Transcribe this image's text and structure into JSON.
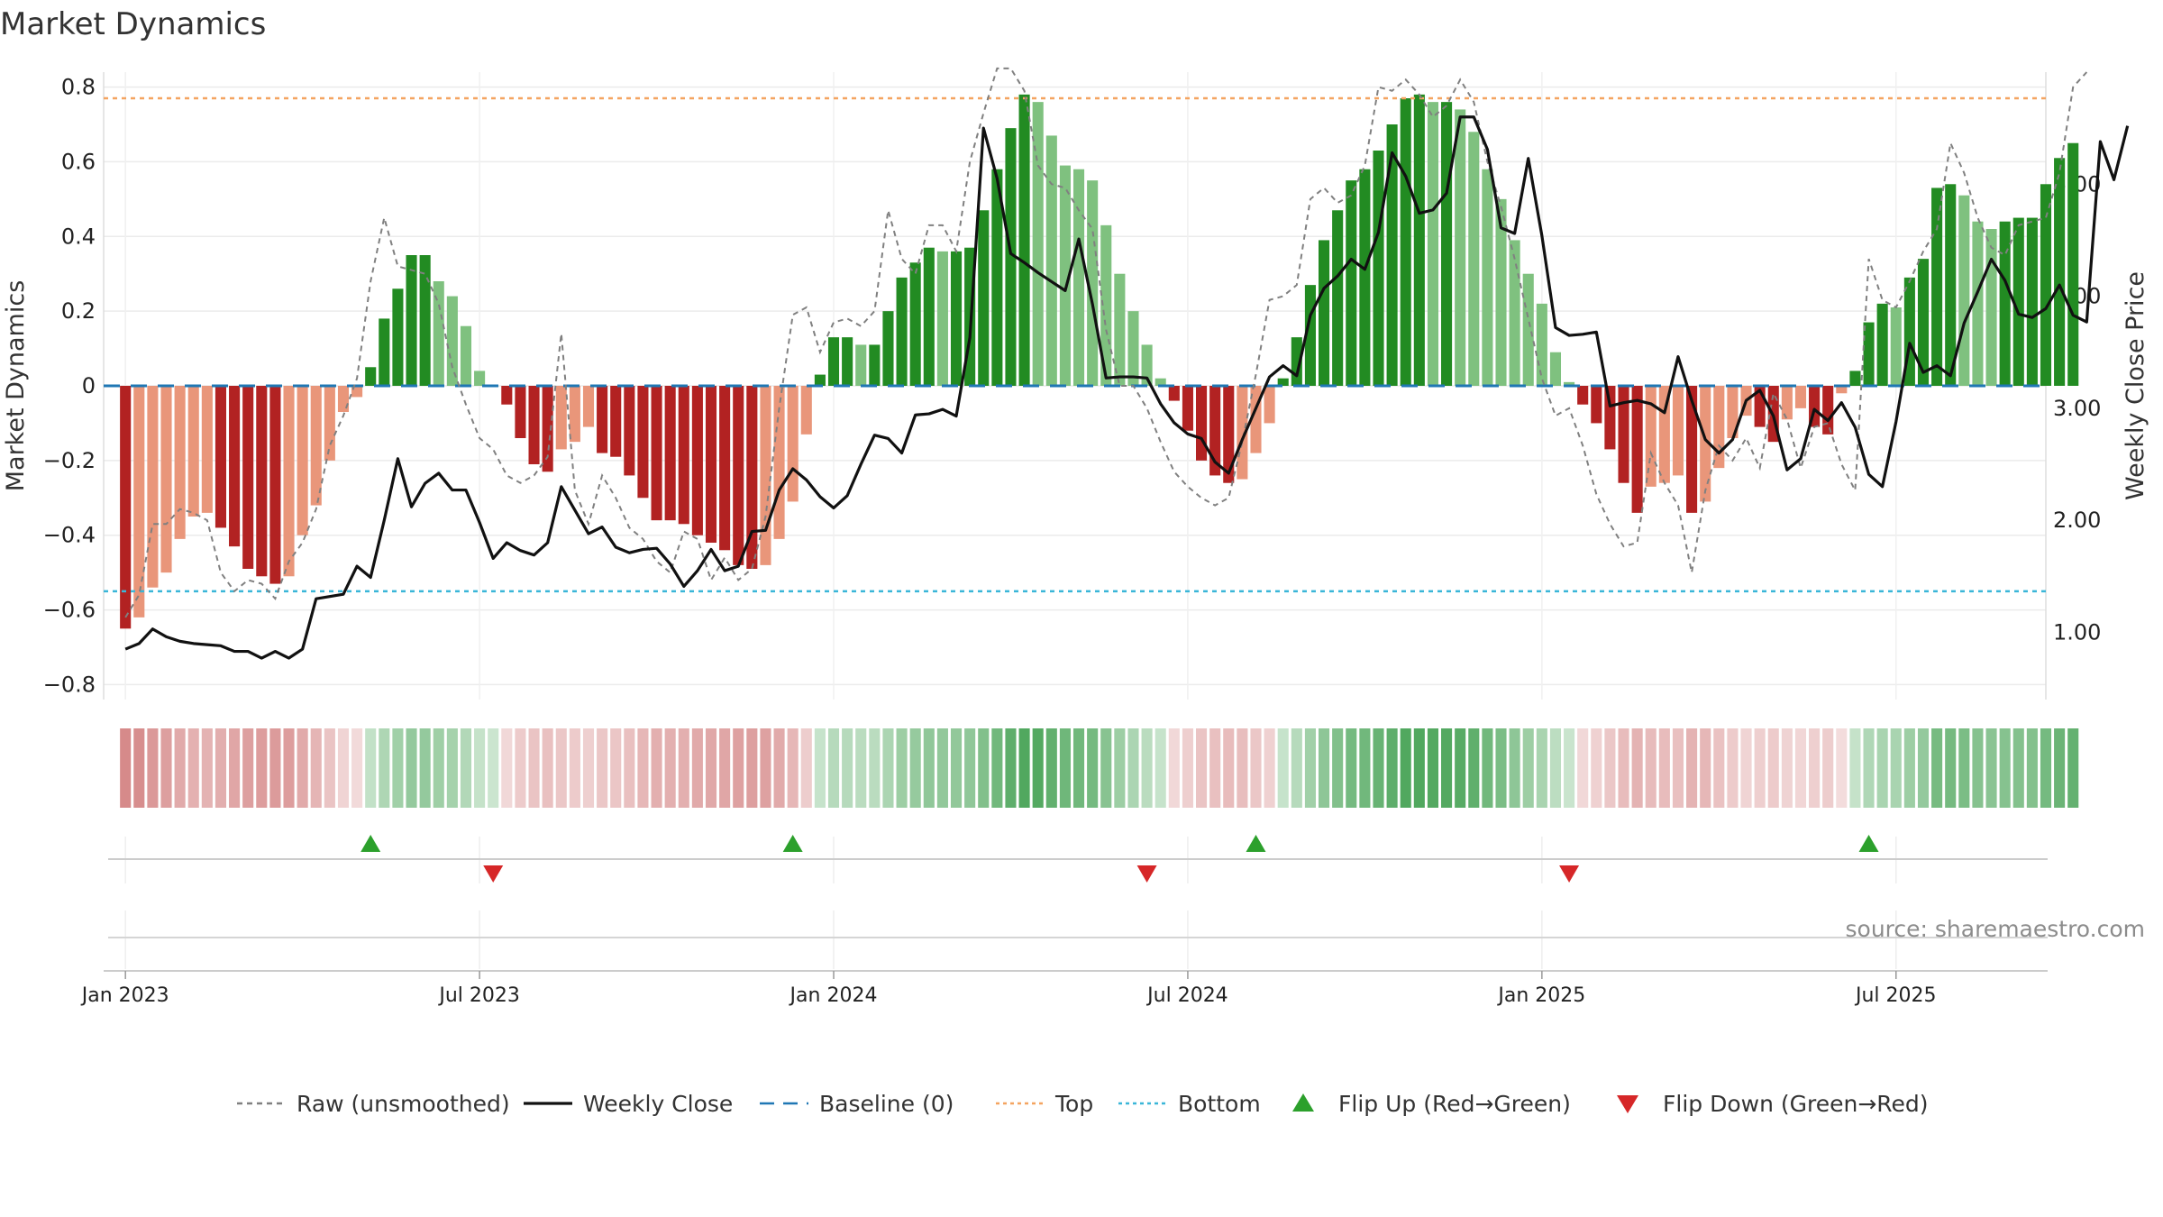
{
  "chart_data": {
    "type": "bar",
    "title": "Market Dynamics",
    "ylabel_left": "Market Dynamics",
    "ylabel_right": "Weekly Close Price",
    "source": "source: sharemaestro.com",
    "ylim_left": [
      -0.84,
      0.84
    ],
    "ylim_right": [
      0.4,
      6.0
    ],
    "left_ticks": [
      {
        "v": 0.8,
        "label": "0.8"
      },
      {
        "v": 0.6,
        "label": "0.6"
      },
      {
        "v": 0.4,
        "label": "0.4"
      },
      {
        "v": 0.2,
        "label": "0.2"
      },
      {
        "v": 0.0,
        "label": "0"
      },
      {
        "v": -0.2,
        "label": "−0.2"
      },
      {
        "v": -0.4,
        "label": "−0.4"
      },
      {
        "v": -0.6,
        "label": "−0.6"
      },
      {
        "v": -0.8,
        "label": "−0.8"
      }
    ],
    "right_ticks": [
      {
        "v": 5.0,
        "label": "5.00"
      },
      {
        "v": 4.0,
        "label": "4.00"
      },
      {
        "v": 3.0,
        "label": "3.00"
      },
      {
        "v": 2.0,
        "label": "2.00"
      },
      {
        "v": 1.0,
        "label": "1.00"
      }
    ],
    "x_ticks": [
      {
        "week": 0,
        "label": "Jan 2023"
      },
      {
        "week": 26,
        "label": "Jul 2023"
      },
      {
        "week": 52,
        "label": "Jan 2024"
      },
      {
        "week": 78,
        "label": "Jul 2024"
      },
      {
        "week": 104,
        "label": "Jan 2025"
      },
      {
        "week": 130,
        "label": "Jul 2025"
      }
    ],
    "x_range_weeks": [
      -1.6,
      141
    ],
    "top_level": 0.77,
    "bottom_level": -0.55,
    "baseline": 0,
    "colors": {
      "strong_green": "#228b22",
      "light_green": "#7fc17f",
      "strong_red": "#b22222",
      "light_red": "#e9967a",
      "close_line": "#111111",
      "raw_line": "#808080",
      "baseline": "#1f77b4",
      "top": "#f4a460",
      "bottom": "#3ab6d8",
      "flip_up": "#2ca02c",
      "flip_down": "#d62728"
    },
    "series": [
      {
        "name": "Market Dynamics",
        "values": [
          -0.65,
          -0.62,
          -0.54,
          -0.5,
          -0.41,
          -0.35,
          -0.34,
          -0.38,
          -0.43,
          -0.49,
          -0.51,
          -0.53,
          -0.51,
          -0.4,
          -0.32,
          -0.2,
          -0.07,
          -0.03,
          0.05,
          0.18,
          0.26,
          0.35,
          0.35,
          0.28,
          0.24,
          0.16,
          0.04,
          0.0,
          -0.05,
          -0.14,
          -0.21,
          -0.23,
          -0.17,
          -0.15,
          -0.11,
          -0.18,
          -0.19,
          -0.24,
          -0.3,
          -0.36,
          -0.36,
          -0.37,
          -0.4,
          -0.42,
          -0.44,
          -0.48,
          -0.49,
          -0.48,
          -0.41,
          -0.31,
          -0.13,
          0.03,
          0.13,
          0.13,
          0.11,
          0.11,
          0.2,
          0.29,
          0.33,
          0.37,
          0.36,
          0.36,
          0.37,
          0.47,
          0.58,
          0.69,
          0.78,
          0.76,
          0.67,
          0.59,
          0.58,
          0.55,
          0.43,
          0.3,
          0.2,
          0.11,
          0.02,
          -0.04,
          -0.12,
          -0.2,
          -0.24,
          -0.26,
          -0.25,
          -0.18,
          -0.1,
          0.02,
          0.13,
          0.27,
          0.39,
          0.47,
          0.55,
          0.58,
          0.63,
          0.7,
          0.77,
          0.78,
          0.76,
          0.76,
          0.74,
          0.68,
          0.58,
          0.5,
          0.39,
          0.3,
          0.22,
          0.09,
          0.01,
          -0.05,
          -0.1,
          -0.17,
          -0.26,
          -0.34,
          -0.27,
          -0.26,
          -0.24,
          -0.34,
          -0.31,
          -0.22,
          -0.14,
          -0.08,
          -0.11,
          -0.15,
          -0.09,
          -0.06,
          -0.11,
          -0.13,
          -0.02,
          0.04,
          0.17,
          0.22,
          0.21,
          0.29,
          0.34,
          0.53,
          0.54,
          0.51,
          0.44,
          0.42,
          0.44,
          0.45,
          0.45,
          0.54,
          0.61,
          0.65
        ]
      },
      {
        "name": "Weekly Close",
        "values": [
          0.85,
          0.9,
          1.03,
          0.96,
          0.92,
          0.9,
          0.89,
          0.88,
          0.83,
          0.83,
          0.77,
          0.83,
          0.77,
          0.85,
          1.3,
          1.32,
          1.34,
          1.59,
          1.49,
          2.0,
          2.55,
          2.12,
          2.33,
          2.42,
          2.27,
          2.27,
          1.98,
          1.66,
          1.8,
          1.73,
          1.69,
          1.8,
          2.3,
          2.09,
          1.88,
          1.94,
          1.76,
          1.71,
          1.74,
          1.75,
          1.61,
          1.41,
          1.55,
          1.74,
          1.55,
          1.59,
          1.9,
          1.91,
          2.27,
          2.46,
          2.36,
          2.21,
          2.11,
          2.22,
          2.5,
          2.76,
          2.73,
          2.6,
          2.94,
          2.95,
          2.99,
          2.93,
          3.63,
          5.5,
          5.05,
          4.38,
          4.3,
          4.21,
          4.13,
          4.05,
          4.51,
          3.93,
          3.27,
          3.28,
          3.28,
          3.27,
          3.04,
          2.87,
          2.77,
          2.73,
          2.52,
          2.42,
          2.72,
          3.0,
          3.28,
          3.38,
          3.29,
          3.83,
          4.07,
          4.18,
          4.33,
          4.24,
          4.57,
          5.28,
          5.07,
          4.74,
          4.77,
          4.92,
          5.6,
          5.6,
          5.31,
          4.61,
          4.56,
          5.23,
          4.54,
          3.72,
          3.65,
          3.66,
          3.68,
          3.02,
          3.05,
          3.07,
          3.04,
          2.96,
          3.46,
          3.07,
          2.72,
          2.6,
          2.72,
          3.07,
          3.16,
          2.93,
          2.45,
          2.55,
          2.99,
          2.89,
          3.05,
          2.83,
          2.41,
          2.3,
          2.88,
          3.58,
          3.32,
          3.38,
          3.29,
          3.76,
          4.04,
          4.33,
          4.14,
          3.84,
          3.81,
          3.89,
          4.1,
          3.83,
          3.77,
          5.38,
          5.04,
          5.52
        ]
      },
      {
        "name": "Raw (unsmoothed)",
        "values": [
          -0.62,
          -0.56,
          -0.37,
          -0.37,
          -0.33,
          -0.34,
          -0.36,
          -0.5,
          -0.55,
          -0.52,
          -0.53,
          -0.57,
          -0.47,
          -0.42,
          -0.33,
          -0.16,
          -0.08,
          0.02,
          0.28,
          0.45,
          0.32,
          0.31,
          0.3,
          0.22,
          0.05,
          -0.05,
          -0.14,
          -0.17,
          -0.24,
          -0.26,
          -0.24,
          -0.19,
          0.14,
          -0.28,
          -0.37,
          -0.24,
          -0.3,
          -0.38,
          -0.41,
          -0.47,
          -0.5,
          -0.39,
          -0.41,
          -0.52,
          -0.46,
          -0.52,
          -0.49,
          -0.35,
          -0.06,
          0.19,
          0.21,
          0.09,
          0.17,
          0.18,
          0.16,
          0.2,
          0.47,
          0.34,
          0.3,
          0.43,
          0.43,
          0.36,
          0.6,
          0.73,
          0.85,
          0.85,
          0.79,
          0.59,
          0.54,
          0.53,
          0.47,
          0.42,
          0.15,
          0.0,
          0.0,
          -0.06,
          -0.15,
          -0.23,
          -0.27,
          -0.3,
          -0.32,
          -0.3,
          -0.15,
          0.03,
          0.23,
          0.24,
          0.27,
          0.5,
          0.53,
          0.49,
          0.51,
          0.59,
          0.8,
          0.79,
          0.82,
          0.78,
          0.72,
          0.75,
          0.82,
          0.76,
          0.6,
          0.48,
          0.34,
          0.18,
          0.02,
          -0.08,
          -0.06,
          -0.16,
          -0.29,
          -0.37,
          -0.43,
          -0.42,
          -0.18,
          -0.26,
          -0.32,
          -0.5,
          -0.28,
          -0.16,
          -0.2,
          -0.14,
          -0.22,
          -0.02,
          -0.09,
          -0.22,
          -0.11,
          -0.1,
          -0.21,
          -0.28,
          0.34,
          0.23,
          0.21,
          0.28,
          0.36,
          0.42,
          0.65,
          0.57,
          0.45,
          0.37,
          0.35,
          0.43,
          0.44,
          0.45,
          0.57,
          0.8,
          0.84
        ]
      }
    ],
    "flip_up_weeks": [
      18,
      49,
      83,
      128
    ],
    "flip_down_weeks": [
      27,
      75,
      106
    ],
    "legend": {
      "placement": "bottom-center",
      "items": [
        {
          "label": "Raw (unsmoothed)",
          "kind": "line",
          "style": "dashed",
          "color": "#808080"
        },
        {
          "label": "Weekly Close",
          "kind": "line",
          "style": "solid",
          "color": "#111111"
        },
        {
          "label": "Baseline (0)",
          "kind": "line",
          "style": "longdash",
          "color": "#1f77b4"
        },
        {
          "label": "Top",
          "kind": "line",
          "style": "dotted",
          "color": "#f4a460"
        },
        {
          "label": "Bottom",
          "kind": "line",
          "style": "dotted",
          "color": "#3ab6d8"
        },
        {
          "label": "Flip Up (Red→Green)",
          "kind": "marker-up",
          "color": "#2ca02c"
        },
        {
          "label": "Flip Down (Green→Red)",
          "kind": "marker-down",
          "color": "#d62728"
        }
      ]
    }
  }
}
